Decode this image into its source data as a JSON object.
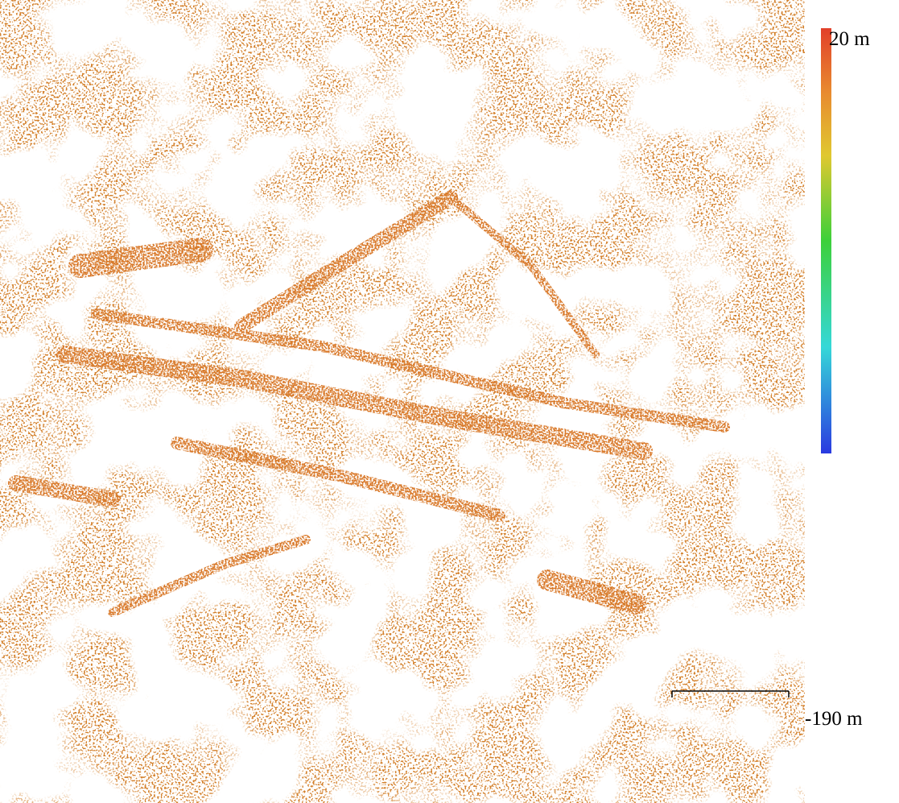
{
  "colorbar": {
    "max_label": "20 m",
    "min_label": "-190 m"
  }
}
